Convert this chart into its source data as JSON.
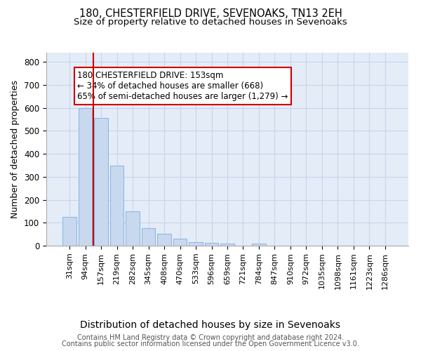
{
  "title1": "180, CHESTERFIELD DRIVE, SEVENOAKS, TN13 2EH",
  "title2": "Size of property relative to detached houses in Sevenoaks",
  "xlabel": "Distribution of detached houses by size in Sevenoaks",
  "ylabel": "Number of detached properties",
  "categories": [
    "31sqm",
    "94sqm",
    "157sqm",
    "219sqm",
    "282sqm",
    "345sqm",
    "408sqm",
    "470sqm",
    "533sqm",
    "596sqm",
    "659sqm",
    "721sqm",
    "784sqm",
    "847sqm",
    "910sqm",
    "972sqm",
    "1035sqm",
    "1098sqm",
    "1161sqm",
    "1223sqm",
    "1286sqm"
  ],
  "values": [
    125,
    600,
    555,
    348,
    150,
    75,
    52,
    32,
    15,
    12,
    10,
    0,
    8,
    0,
    0,
    0,
    0,
    0,
    0,
    0,
    0
  ],
  "bar_color": "#c8d8ee",
  "bar_edge_color": "#7aaedd",
  "property_line_bin": 2,
  "annotation_line1": "180 CHESTERFIELD DRIVE: 153sqm",
  "annotation_line2": "← 34% of detached houses are smaller (668)",
  "annotation_line3": "65% of semi-detached houses are larger (1,279) →",
  "annotation_box_facecolor": "#ffffff",
  "annotation_box_edgecolor": "#cc0000",
  "property_line_color": "#cc0000",
  "ylim": [
    0,
    840
  ],
  "yticks": [
    0,
    100,
    200,
    300,
    400,
    500,
    600,
    700,
    800
  ],
  "grid_color": "#c8d4e8",
  "bg_color": "#e4ecf8",
  "footer_line1": "Contains HM Land Registry data © Crown copyright and database right 2024.",
  "footer_line2": "Contains public sector information licensed under the Open Government Licence v3.0.",
  "title1_fontsize": 10.5,
  "title2_fontsize": 9.5,
  "ylabel_fontsize": 9,
  "xlabel_fontsize": 10,
  "tick_fontsize": 8,
  "annotation_fontsize": 8.5,
  "footer_fontsize": 7
}
